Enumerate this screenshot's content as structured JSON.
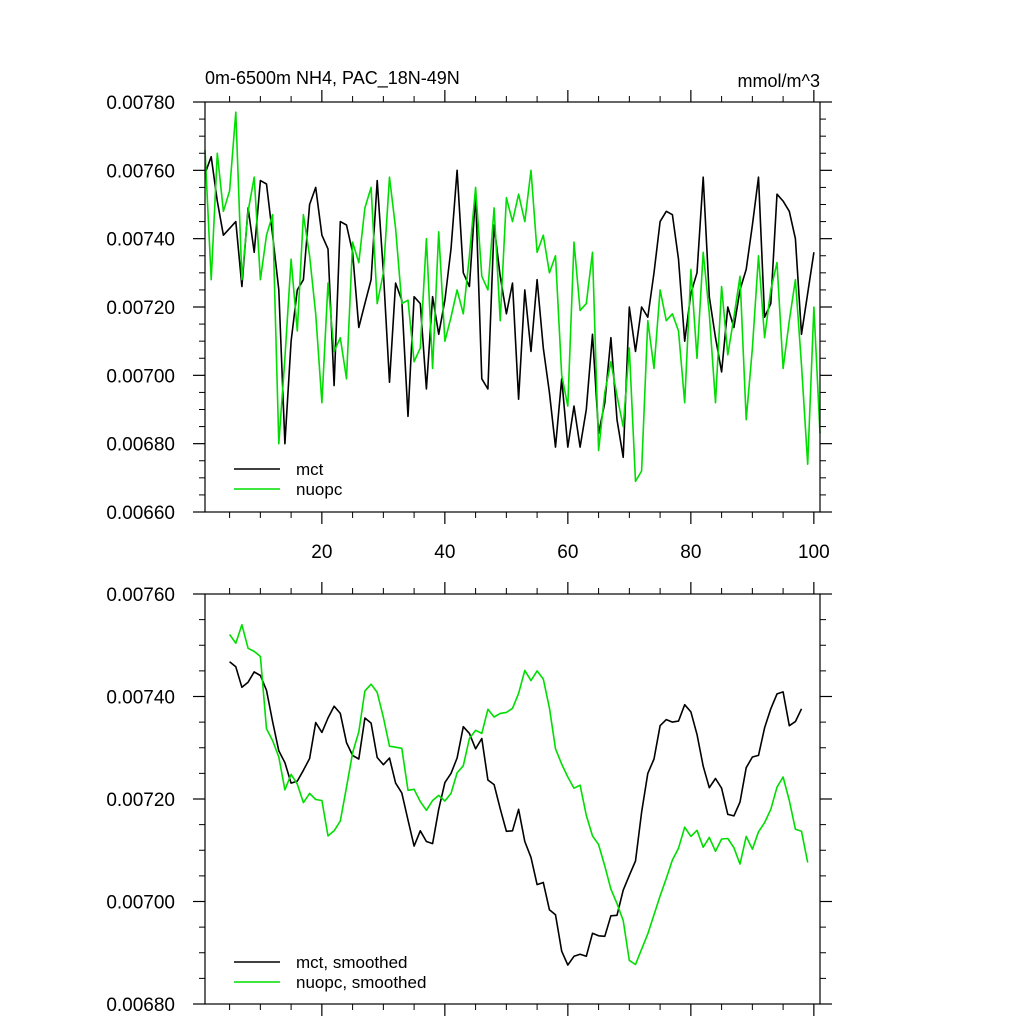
{
  "colors": {
    "mct": "#000000",
    "nuopc": "#00dd00",
    "axis": "#000000",
    "background": "#ffffff"
  },
  "chart_data": [
    {
      "type": "line",
      "title": "0m-6500m NH4, PAC_18N-49N",
      "units": "mmol/m^3",
      "xlim": [
        1,
        101
      ],
      "ylim": [
        0.0066,
        0.0078
      ],
      "x_ticks": [
        20,
        40,
        60,
        80,
        100
      ],
      "x_tick_labels": [
        "20",
        "40",
        "60",
        "80",
        "100"
      ],
      "y_ticks": [
        0.0066,
        0.0068,
        0.007,
        0.0072,
        0.0074,
        0.0076,
        0.0078
      ],
      "y_tick_labels": [
        "0.00660",
        "0.00680",
        "0.00700",
        "0.00720",
        "0.00740",
        "0.00760",
        "0.00780"
      ],
      "legend_position": "bottom-left",
      "series": [
        {
          "name": "mct",
          "x_start": 1,
          "values": [
            0.00759,
            0.00764,
            0.00751,
            0.00741,
            0.00743,
            0.00745,
            0.00726,
            0.00749,
            0.00736,
            0.00757,
            0.00756,
            0.00741,
            0.00725,
            0.0068,
            0.0071,
            0.00725,
            0.00728,
            0.0075,
            0.00755,
            0.00741,
            0.00737,
            0.00697,
            0.00745,
            0.00744,
            0.00736,
            0.00714,
            0.00721,
            0.00728,
            0.00757,
            0.0073,
            0.00698,
            0.00727,
            0.00722,
            0.00688,
            0.00723,
            0.00721,
            0.00696,
            0.00723,
            0.00712,
            0.00722,
            0.00737,
            0.0076,
            0.0073,
            0.00726,
            0.00753,
            0.00699,
            0.00696,
            0.00744,
            0.00729,
            0.00718,
            0.00727,
            0.00693,
            0.00725,
            0.00707,
            0.00728,
            0.00708,
            0.00695,
            0.00679,
            0.00699,
            0.00679,
            0.00691,
            0.00679,
            0.0069,
            0.00712,
            0.00683,
            0.00692,
            0.00711,
            0.00687,
            0.00676,
            0.0072,
            0.00707,
            0.0072,
            0.00717,
            0.0073,
            0.00745,
            0.00748,
            0.00747,
            0.00734,
            0.0071,
            0.00724,
            0.0073,
            0.00758,
            0.00723,
            0.00711,
            0.00701,
            0.0072,
            0.00714,
            0.00725,
            0.00731,
            0.00744,
            0.00758,
            0.00717,
            0.00721,
            0.00753,
            0.00751,
            0.00748,
            0.0074,
            0.00712,
            0.00724,
            0.00736
          ]
        },
        {
          "name": "nuopc",
          "x_start": 1,
          "values": [
            0.00766,
            0.00728,
            0.00765,
            0.00748,
            0.00754,
            0.00777,
            0.00728,
            0.00748,
            0.00758,
            0.00728,
            0.00741,
            0.00747,
            0.0068,
            0.00705,
            0.00734,
            0.00713,
            0.00747,
            0.00735,
            0.00718,
            0.00692,
            0.00727,
            0.00707,
            0.00711,
            0.00699,
            0.00739,
            0.00733,
            0.00749,
            0.00755,
            0.00721,
            0.0073,
            0.00758,
            0.00743,
            0.00721,
            0.00722,
            0.00704,
            0.00708,
            0.0074,
            0.00702,
            0.00742,
            0.0071,
            0.00717,
            0.00725,
            0.00718,
            0.00735,
            0.00755,
            0.00729,
            0.00725,
            0.00749,
            0.00716,
            0.00752,
            0.00745,
            0.00753,
            0.00745,
            0.0076,
            0.00736,
            0.00741,
            0.0073,
            0.00735,
            0.007,
            0.00691,
            0.00739,
            0.00719,
            0.00721,
            0.00736,
            0.00678,
            0.00695,
            0.00704,
            0.00694,
            0.00685,
            0.00708,
            0.00669,
            0.00672,
            0.00716,
            0.00702,
            0.00725,
            0.00716,
            0.00718,
            0.00713,
            0.00692,
            0.00731,
            0.00705,
            0.00736,
            0.00718,
            0.00692,
            0.00726,
            0.00706,
            0.00717,
            0.00729,
            0.00687,
            0.00708,
            0.00735,
            0.00711,
            0.00725,
            0.00733,
            0.00702,
            0.00716,
            0.00728,
            0.00703,
            0.00674,
            0.0072,
            0.00683
          ]
        }
      ]
    },
    {
      "type": "line",
      "title": "",
      "xlim": [
        1,
        101
      ],
      "ylim": [
        0.0068,
        0.0076
      ],
      "x_ticks": [
        20,
        40,
        60,
        80,
        100
      ],
      "y_ticks": [
        0.0068,
        0.007,
        0.0072,
        0.0074,
        0.0076
      ],
      "y_tick_labels": [
        "0.00680",
        "0.00700",
        "0.00720",
        "0.00740",
        "0.00760"
      ],
      "legend_position": "bottom-left",
      "series": [
        {
          "name": "mct, smoothed",
          "x_start": 5,
          "values": [
            0.007468,
            0.007458,
            0.007418,
            0.007428,
            0.007448,
            0.007441,
            0.007412,
            0.007351,
            0.007294,
            0.007271,
            0.007231,
            0.007235,
            0.007256,
            0.007279,
            0.007349,
            0.00733,
            0.007358,
            0.007381,
            0.007367,
            0.00731,
            0.007285,
            0.007278,
            0.007358,
            0.007348,
            0.007281,
            0.007267,
            0.00728,
            0.007231,
            0.007212,
            0.007159,
            0.007108,
            0.007138,
            0.007117,
            0.007113,
            0.00718,
            0.007232,
            0.00725,
            0.00728,
            0.007341,
            0.007328,
            0.007298,
            0.007318,
            0.007237,
            0.007228,
            0.007181,
            0.007137,
            0.007138,
            0.00718,
            0.007117,
            0.007086,
            0.007033,
            0.007037,
            0.006984,
            0.006974,
            0.006903,
            0.006876,
            0.006893,
            0.006897,
            0.006893,
            0.006938,
            0.006933,
            0.006932,
            0.006972,
            0.006973,
            0.007022,
            0.007051,
            0.007079,
            0.007174,
            0.00725,
            0.007278,
            0.007343,
            0.007355,
            0.00735,
            0.007352,
            0.007384,
            0.00737,
            0.007326,
            0.007264,
            0.007222,
            0.00724,
            0.007221,
            0.00717,
            0.007167,
            0.007194,
            0.007261,
            0.007282,
            0.007285,
            0.007339,
            0.007376,
            0.007405,
            0.007409,
            0.007343,
            0.007351,
            0.007376
          ]
        },
        {
          "name": "nuopc, smoothed",
          "x_start": 5,
          "values": [
            0.007521,
            0.007504,
            0.00754,
            0.007494,
            0.007488,
            0.007478,
            0.007337,
            0.007314,
            0.007282,
            0.007218,
            0.007248,
            0.007229,
            0.007193,
            0.007211,
            0.007199,
            0.007197,
            0.007128,
            0.007138,
            0.007157,
            0.007223,
            0.00729,
            0.007331,
            0.007411,
            0.007424,
            0.007408,
            0.007359,
            0.007303,
            0.007301,
            0.007299,
            0.007217,
            0.007219,
            0.007195,
            0.007178,
            0.007197,
            0.007207,
            0.007196,
            0.007211,
            0.007251,
            0.007265,
            0.007318,
            0.007334,
            0.007328,
            0.007375,
            0.00736,
            0.007367,
            0.007369,
            0.007377,
            0.007406,
            0.007451,
            0.007431,
            0.00745,
            0.007434,
            0.007378,
            0.007298,
            0.007268,
            0.007243,
            0.007221,
            0.007227,
            0.007168,
            0.007128,
            0.007111,
            0.007069,
            0.007024,
            0.006996,
            0.006963,
            0.006885,
            0.006877,
            0.006907,
            0.006937,
            0.006974,
            0.007011,
            0.007045,
            0.007081,
            0.007104,
            0.007145,
            0.007127,
            0.007139,
            0.007106,
            0.007125,
            0.007098,
            0.007122,
            0.007123,
            0.007105,
            0.007073,
            0.007127,
            0.007102,
            0.007136,
            0.007154,
            0.00718,
            0.007223,
            0.007243,
            0.007197,
            0.007141,
            0.007137,
            0.007076
          ]
        }
      ]
    }
  ]
}
